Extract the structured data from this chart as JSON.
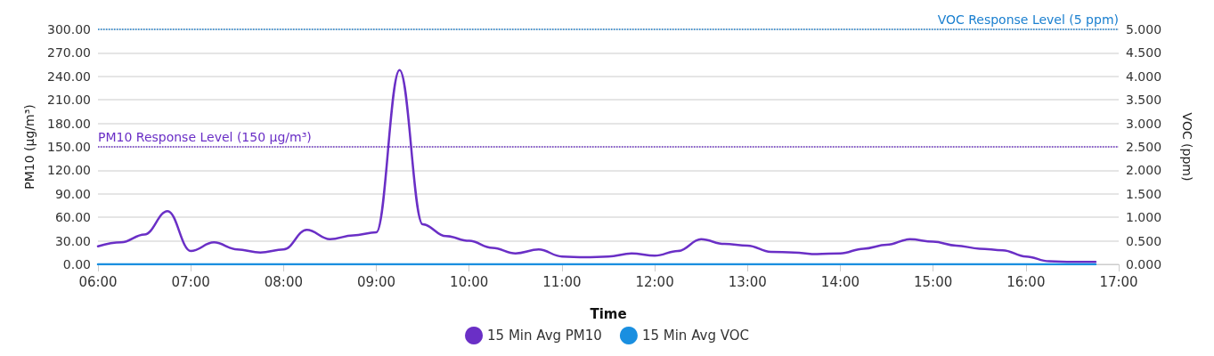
{
  "chart_data": {
    "type": "line",
    "xlabel": "Time",
    "ylabel": "PM10 (µg/m³)",
    "y2label": "VOC (ppm)",
    "x": [
      6,
      6.25,
      6.5,
      6.75,
      7,
      7.25,
      7.5,
      7.75,
      8,
      8.25,
      8.5,
      8.75,
      9,
      9.25,
      9.5,
      9.75,
      10,
      10.25,
      10.5,
      10.75,
      11,
      11.25,
      11.5,
      11.75,
      12,
      12.25,
      12.5,
      12.75,
      13,
      13.25,
      13.5,
      13.75,
      14,
      14.25,
      14.5,
      14.75,
      15,
      15.25,
      15.5,
      15.75,
      16,
      16.25,
      16.5,
      16.75
    ],
    "series": [
      {
        "name": "15 Min Avg PM10",
        "color": "#6a2fc6",
        "values": [
          23,
          28,
          38,
          68,
          17,
          28,
          19,
          15,
          19,
          44,
          32,
          37,
          41,
          248,
          51,
          36,
          30,
          21,
          14,
          19,
          10,
          9,
          10,
          14,
          11,
          17,
          32,
          26,
          24,
          16,
          15,
          13,
          14,
          20,
          25,
          32,
          29,
          24,
          20,
          18,
          10,
          4,
          3,
          3
        ]
      },
      {
        "name": "15 Min Avg VOC",
        "color": "#1a8fe0",
        "axis": "y2",
        "values": [
          0,
          0,
          0,
          0,
          0,
          0,
          0,
          0,
          0,
          0,
          0,
          0,
          0,
          0,
          0,
          0,
          0,
          0,
          0,
          0,
          0,
          0,
          0,
          0,
          0,
          0,
          0,
          0,
          0,
          0,
          0,
          0,
          0,
          0,
          0,
          0,
          0,
          0,
          0,
          0,
          0,
          0,
          0,
          0
        ]
      }
    ],
    "xlim": [
      6,
      17
    ],
    "xticks": [
      {
        "value": 6,
        "label": "06:00"
      },
      {
        "value": 7,
        "label": "07:00"
      },
      {
        "value": 8,
        "label": "08:00"
      },
      {
        "value": 9,
        "label": "09:00"
      },
      {
        "value": 10,
        "label": "10:00"
      },
      {
        "value": 11,
        "label": "11:00"
      },
      {
        "value": 12,
        "label": "12:00"
      },
      {
        "value": 13,
        "label": "13:00"
      },
      {
        "value": 14,
        "label": "14:00"
      },
      {
        "value": 15,
        "label": "15:00"
      },
      {
        "value": 16,
        "label": "16:00"
      },
      {
        "value": 17,
        "label": "17:00"
      }
    ],
    "ylim": [
      0,
      300
    ],
    "yticks": [
      {
        "value": 0,
        "label": "0.00"
      },
      {
        "value": 30,
        "label": "30.00"
      },
      {
        "value": 60,
        "label": "60.00"
      },
      {
        "value": 90,
        "label": "90.00"
      },
      {
        "value": 120,
        "label": "120.00"
      },
      {
        "value": 150,
        "label": "150.00"
      },
      {
        "value": 180,
        "label": "180.00"
      },
      {
        "value": 210,
        "label": "210.00"
      },
      {
        "value": 240,
        "label": "240.00"
      },
      {
        "value": 270,
        "label": "270.00"
      },
      {
        "value": 300,
        "label": "300.00"
      }
    ],
    "y2lim": [
      0,
      5
    ],
    "y2ticks": [
      {
        "value": 0,
        "label": "0.000"
      },
      {
        "value": 0.5,
        "label": "0.500"
      },
      {
        "value": 1,
        "label": "1.000"
      },
      {
        "value": 1.5,
        "label": "1.500"
      },
      {
        "value": 2,
        "label": "2.000"
      },
      {
        "value": 2.5,
        "label": "2.500"
      },
      {
        "value": 3,
        "label": "3.000"
      },
      {
        "value": 3.5,
        "label": "3.500"
      },
      {
        "value": 4,
        "label": "4.000"
      },
      {
        "value": 4.5,
        "label": "4.500"
      },
      {
        "value": 5,
        "label": "5.000"
      }
    ],
    "ref_lines": [
      {
        "axis": "y",
        "value": 150,
        "label": "PM10 Response Level (150 µg/m³)",
        "color": "#6a2fc6",
        "line_style": "dotted"
      },
      {
        "axis": "y2",
        "value": 5,
        "label": "VOC Response Level (5 ppm)",
        "color": "#1a7fcf",
        "line_style": "dotted"
      }
    ],
    "grid": "y",
    "legend": "bottom",
    "marker": "none",
    "line_style": "solid"
  }
}
